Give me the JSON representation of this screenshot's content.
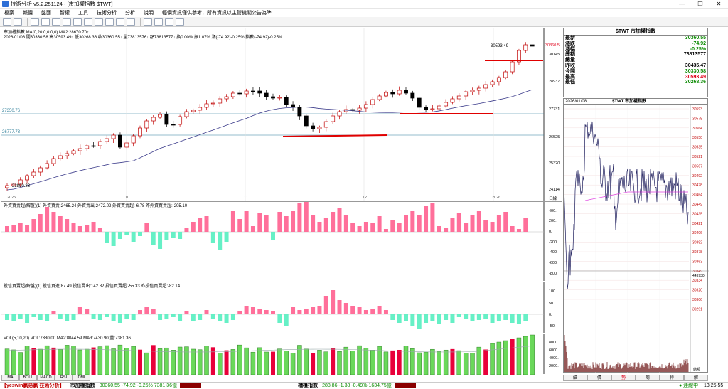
{
  "window": {
    "title": "技術分析 v5.2.251124 - [市加權指數 $TWT]",
    "controls": [
      "—",
      "❐",
      "✕"
    ]
  },
  "menu": [
    "檔案",
    "報價",
    "盤面",
    "智權",
    "工具",
    "技術分析",
    "分析",
    "說明",
    "輕價資訊僅供參考，所有資訊以主管機關公告為準"
  ],
  "main_chart": {
    "header_line1": "市加權指數  MA(0,20,0,0,0,0)  MA2:28670.70↑",
    "header_line2": "2026/01/08 開30330.58 高30593.49↑ 低30268.36 收30360.55↓ 量73813576↓ 額73813577↓ 換0.00% 振1.07% 漲(-74.92)-0.25% 指數(-74.92)-0.25%",
    "annotations": {
      "high_label": "30593.49",
      "low_label": "23890.33",
      "level_1": "27350.76",
      "level_2": "26777.73",
      "last_price_tag": "30360.5"
    },
    "price_ticks": [
      "30145",
      "28937",
      "27731",
      "26525",
      "25320",
      "24114"
    ],
    "date_labels": [
      "2025",
      "10",
      "11",
      "12",
      "2026"
    ],
    "axis_label": "日線"
  },
  "foreign": {
    "header": "外資買賣超(解盤)(1)  外資買賣:2465.24  外資賣出:2472.02  外資買賣超:-6.78  昨外資買賣超:-205.10",
    "ticks": [
      "400.",
      "200.",
      "0.",
      "-200.",
      "-400.",
      "-600.",
      "-800."
    ]
  },
  "dealer": {
    "header": "投信買賣超(解盤)(1)  投信買進:87.49  投信賣出:142.82  投信買賣超:-55.33  昨投信買賣超:-82.14",
    "ticks": [
      "100.",
      "50.",
      "0.",
      "-50."
    ]
  },
  "volume": {
    "header": "VOL(5,10,20)  VOL:7380.00  MA2:8044.59  MA3:7430.90  量:7381.36",
    "ticks": [
      "8000.",
      "6000.",
      "4000.",
      "2000."
    ]
  },
  "quote": {
    "title": "$TWT 市加權指數",
    "rows": [
      {
        "label": "最新",
        "value": "30360.55",
        "color": "#0a8a00"
      },
      {
        "label": "漲跌",
        "value": "-74.92",
        "color": "#0a8a00"
      },
      {
        "label": "漲幅",
        "value": "-0.25%",
        "color": "#0a8a00"
      },
      {
        "label": "總額",
        "value": "73813577",
        "color": "#000000"
      },
      {
        "label": "總量",
        "value": "",
        "color": "#000000"
      },
      {
        "label": "昨收",
        "value": "30435.47",
        "color": "#000000"
      },
      {
        "label": "今開",
        "value": "30330.58",
        "color": "#0a8a00"
      },
      {
        "label": "最高",
        "value": "30593.49",
        "color": "#e0001a"
      },
      {
        "label": "最低",
        "value": "30268.36",
        "color": "#0a8a00"
      }
    ]
  },
  "mini": {
    "date": "2026/01/08",
    "title": "$TWT 市加權指數",
    "ticks": [
      "30593",
      "30578",
      "30564",
      "30550",
      "30535",
      "30521",
      "30507",
      "30492",
      "30478",
      "30464",
      "30449",
      "30435",
      "30421",
      "30406",
      "30392",
      "30378",
      "30363",
      "30349",
      "30334",
      "30320",
      "30306",
      "30291"
    ],
    "vol_tick": "443930",
    "vol_label": "總額"
  },
  "bottom_tabs": [
    "MA",
    "BOLL",
    "MACD",
    "RSI",
    "DMI"
  ],
  "mini_tabs": [
    "細",
    "價",
    "勢",
    "周",
    "特",
    "解"
  ],
  "status": {
    "ticker": "【yeswin贏易贏·技術分析】",
    "idx1_name": "市加權指數",
    "idx1_vals": "30360.55 -74.92 -0.25% 7381.36億",
    "idx2_name": "櫃檯指數",
    "idx2_vals": "288.86 -1.38 -0.49% 1634.75億",
    "conn": "● 連線中",
    "time": "13:25:55"
  },
  "colors": {
    "up": "#ffffff",
    "up_border": "#c00000",
    "down": "#000000",
    "foreign_pos": "#ff6f9a",
    "foreign_neg": "#66f0c6",
    "vol_up": "#6ad85a",
    "vol_down": "#e8003a",
    "ma": "#3a3a8a"
  }
}
